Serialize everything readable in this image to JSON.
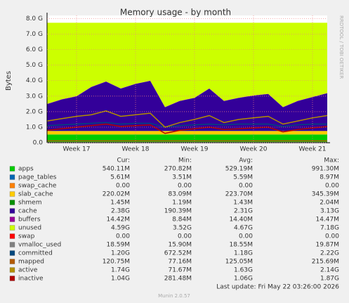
{
  "chart_data": {
    "type": "stacked-area",
    "title": "Memory usage - by month",
    "y_label": "Bytes",
    "side_label": "RRDTOOL / TOBI OETIKER",
    "footer": "Last update: Fri May 22 03:26:00 2026",
    "version": "Munin 2.0.57",
    "categories": [
      null,
      null,
      "Week 17",
      null,
      null,
      null,
      "Week 18",
      null,
      null,
      null,
      "Week 19",
      null,
      null,
      null,
      "Week 20",
      null,
      null,
      null,
      "Week 21",
      null
    ],
    "ylim": [
      0,
      8.2
    ],
    "yticks": [
      {
        "value": 0,
        "label": "0.0"
      },
      {
        "value": 1,
        "label": "1.0 G"
      },
      {
        "value": 2,
        "label": "2.0 G"
      },
      {
        "value": 3,
        "label": "3.0 G"
      },
      {
        "value": 4,
        "label": "4.0 G"
      },
      {
        "value": 5,
        "label": "5.0 G"
      },
      {
        "value": 6,
        "label": "6.0 G"
      },
      {
        "value": 7,
        "label": "7.0 G"
      },
      {
        "value": 8,
        "label": "8.0 G"
      }
    ],
    "grid": true,
    "stat_headers": [
      "Cur:",
      "Min:",
      "Avg:",
      "Max:"
    ],
    "series": [
      {
        "name": "apps",
        "kind": "area",
        "color": "#00cc00",
        "values": [
          0.53,
          0.53,
          0.53,
          0.53,
          0.53,
          0.53,
          0.53,
          0.53,
          0.53,
          0.53,
          0.53,
          0.53,
          0.53,
          0.53,
          0.53,
          0.53,
          0.53,
          0.53,
          0.53,
          0.53
        ],
        "stats": [
          "540.11M",
          "270.82M",
          "529.19M",
          "991.30M"
        ]
      },
      {
        "name": "page_tables",
        "kind": "area",
        "color": "#0066b3",
        "values": [
          0.005,
          0.005,
          0.005,
          0.005,
          0.005,
          0.005,
          0.005,
          0.005,
          0.005,
          0.005,
          0.005,
          0.005,
          0.005,
          0.005,
          0.005,
          0.005,
          0.005,
          0.005,
          0.005,
          0.005
        ],
        "stats": [
          "5.61M",
          "3.51M",
          "5.59M",
          "8.97M"
        ]
      },
      {
        "name": "swap_cache",
        "kind": "area",
        "color": "#ff8000",
        "values": [
          0,
          0,
          0,
          0,
          0,
          0,
          0,
          0,
          0,
          0,
          0,
          0,
          0,
          0,
          0,
          0,
          0,
          0,
          0,
          0
        ],
        "stats": [
          "0.00",
          "0.00",
          "0.00",
          "0.00"
        ]
      },
      {
        "name": "slab_cache",
        "kind": "area",
        "color": "#ffcc00",
        "values": [
          0.22,
          0.22,
          0.22,
          0.22,
          0.22,
          0.22,
          0.22,
          0.22,
          0.22,
          0.22,
          0.22,
          0.22,
          0.22,
          0.22,
          0.22,
          0.22,
          0.22,
          0.22,
          0.22,
          0.22
        ],
        "stats": [
          "220.02M",
          "83.09M",
          "223.70M",
          "345.39M"
        ]
      },
      {
        "name": "shmem",
        "kind": "area",
        "color": "#008f00",
        "values": [
          0.0015,
          0.0015,
          0.0015,
          0.0015,
          0.0015,
          0.0015,
          0.0015,
          0.0015,
          0.0015,
          0.0015,
          0.0015,
          0.0015,
          0.0015,
          0.0015,
          0.0015,
          0.0015,
          0.0015,
          0.0015,
          0.0015,
          0.0015
        ],
        "stats": [
          "1.45M",
          "1.19M",
          "1.43M",
          "2.04M"
        ]
      },
      {
        "name": "cache",
        "kind": "area",
        "color": "#330099",
        "values": [
          1.73,
          2.03,
          2.23,
          2.83,
          3.18,
          2.73,
          3.03,
          3.23,
          1.53,
          1.93,
          2.13,
          2.73,
          1.93,
          2.13,
          2.28,
          2.38,
          1.53,
          1.93,
          2.18,
          2.43
        ],
        "stats": [
          "2.38G",
          "190.39M",
          "2.31G",
          "3.13G"
        ]
      },
      {
        "name": "buffers",
        "kind": "area",
        "color": "#990099",
        "values": [
          0.014,
          0.014,
          0.014,
          0.014,
          0.014,
          0.014,
          0.014,
          0.014,
          0.014,
          0.014,
          0.014,
          0.014,
          0.014,
          0.014,
          0.014,
          0.014,
          0.014,
          0.014,
          0.014,
          0.014
        ],
        "stats": [
          "14.42M",
          "8.84M",
          "14.40M",
          "14.47M"
        ]
      },
      {
        "name": "unused",
        "kind": "area",
        "color": "#ccff00",
        "values": [
          5.23,
          4.93,
          4.73,
          4.13,
          3.78,
          4.23,
          3.93,
          3.73,
          5.43,
          5.03,
          4.83,
          4.23,
          5.03,
          4.83,
          4.68,
          4.58,
          5.43,
          5.03,
          4.78,
          4.53
        ],
        "stats": [
          "4.59G",
          "3.52G",
          "4.67G",
          "7.18G"
        ]
      },
      {
        "name": "swap",
        "kind": "area",
        "color": "#ff0000",
        "values": [
          0,
          0,
          0,
          0,
          0,
          0,
          0,
          0,
          0,
          0,
          0,
          0,
          0,
          0,
          0,
          0,
          0,
          0,
          0,
          0
        ],
        "stats": [
          "0.00",
          "0.00",
          "0.00",
          "0.00"
        ]
      },
      {
        "name": "vmalloc_used",
        "kind": "line",
        "color": "#808080",
        "values": [
          0.019,
          0.019,
          0.019,
          0.019,
          0.019,
          0.019,
          0.019,
          0.019,
          0.019,
          0.019,
          0.019,
          0.019,
          0.019,
          0.019,
          0.019,
          0.019,
          0.019,
          0.019,
          0.019,
          0.019
        ],
        "stats": [
          "18.59M",
          "15.90M",
          "18.55M",
          "19.87M"
        ]
      },
      {
        "name": "committed",
        "kind": "line",
        "color": "#00487d",
        "values": [
          1.1,
          1.15,
          1.2,
          1.25,
          1.3,
          1.2,
          1.25,
          1.25,
          1.0,
          1.1,
          1.15,
          1.2,
          1.15,
          1.2,
          1.2,
          1.2,
          1.05,
          1.15,
          1.2,
          1.2
        ],
        "stats": [
          "1.20G",
          "672.52M",
          "1.18G",
          "2.22G"
        ]
      },
      {
        "name": "mapped",
        "kind": "line",
        "color": "#b35a00",
        "values": [
          0.12,
          0.12,
          0.12,
          0.12,
          0.12,
          0.12,
          0.12,
          0.12,
          0.12,
          0.12,
          0.12,
          0.12,
          0.12,
          0.12,
          0.12,
          0.12,
          0.12,
          0.12,
          0.12,
          0.12
        ],
        "stats": [
          "120.75M",
          "77.16M",
          "125.05M",
          "215.69M"
        ]
      },
      {
        "name": "active",
        "kind": "line",
        "color": "#b38f00",
        "values": [
          1.4,
          1.55,
          1.7,
          1.8,
          2.05,
          1.7,
          1.8,
          1.9,
          1.0,
          1.3,
          1.5,
          1.75,
          1.3,
          1.5,
          1.6,
          1.7,
          1.2,
          1.4,
          1.6,
          1.75
        ],
        "stats": [
          "1.74G",
          "71.67M",
          "1.63G",
          "2.14G"
        ]
      },
      {
        "name": "inactive",
        "kind": "line",
        "color": "#b30000",
        "values": [
          0.8,
          0.9,
          1.0,
          1.1,
          1.2,
          1.05,
          1.1,
          1.15,
          0.6,
          0.8,
          0.9,
          1.0,
          0.85,
          0.9,
          0.95,
          1.0,
          0.7,
          0.85,
          0.95,
          1.04
        ],
        "stats": [
          "1.04G",
          "281.48M",
          "1.06G",
          "1.87G"
        ]
      }
    ]
  }
}
